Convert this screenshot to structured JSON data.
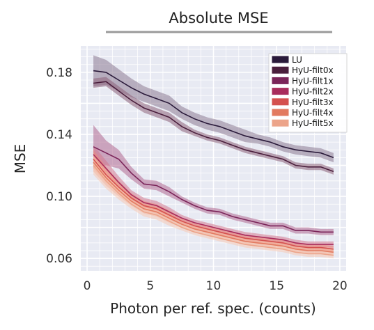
{
  "chart_data": {
    "type": "line",
    "title": "Absolute MSE",
    "xlabel": "Photon per ref. spec. (counts)",
    "ylabel": "MSE",
    "xlim": [
      -0.5,
      20.5
    ],
    "ylim": [
      0.052,
      0.197
    ],
    "xticks": [
      0,
      5,
      10,
      15,
      20
    ],
    "xtick_labels": [
      "0",
      "5",
      "10",
      "15",
      "20"
    ],
    "yticks": [
      0.06,
      0.1,
      0.14,
      0.18
    ],
    "ytick_labels": [
      "0.06",
      "0.10",
      "0.14",
      "0.18"
    ],
    "grid": true,
    "legend_position": "top-right",
    "x": [
      0.5,
      1.5,
      2.5,
      3.5,
      4.5,
      5.5,
      6.5,
      7.5,
      8.5,
      9.5,
      10.5,
      11.5,
      12.5,
      13.5,
      14.5,
      15.5,
      16.5,
      17.5,
      18.5,
      19.5
    ],
    "series": [
      {
        "name": "LU",
        "color": "#2a1a3a",
        "band_color": "#8c7a92",
        "values": [
          0.181,
          0.18,
          0.175,
          0.17,
          0.166,
          0.163,
          0.16,
          0.154,
          0.15,
          0.147,
          0.145,
          0.142,
          0.139,
          0.137,
          0.135,
          0.132,
          0.13,
          0.129,
          0.128,
          0.125
        ],
        "spread": [
          0.01,
          0.008,
          0.007,
          0.006,
          0.005,
          0.005,
          0.005,
          0.004,
          0.004,
          0.004,
          0.004,
          0.004,
          0.004,
          0.003,
          0.003,
          0.003,
          0.003,
          0.003,
          0.003,
          0.003
        ]
      },
      {
        "name": "HyU-filt0x",
        "color": "#4a1e3c",
        "band_color": "#8c6078",
        "values": [
          0.173,
          0.174,
          0.168,
          0.162,
          0.157,
          0.154,
          0.151,
          0.145,
          0.141,
          0.138,
          0.136,
          0.133,
          0.13,
          0.128,
          0.126,
          0.124,
          0.12,
          0.119,
          0.119,
          0.116
        ],
        "spread": [
          0.003,
          0.003,
          0.003,
          0.003,
          0.003,
          0.003,
          0.003,
          0.003,
          0.002,
          0.002,
          0.002,
          0.002,
          0.002,
          0.002,
          0.002,
          0.002,
          0.002,
          0.002,
          0.002,
          0.002
        ]
      },
      {
        "name": "HyU-filt1x",
        "color": "#7a2459",
        "band_color": "#b06890",
        "values": [
          0.132,
          0.128,
          0.124,
          0.115,
          0.108,
          0.107,
          0.103,
          0.098,
          0.094,
          0.091,
          0.09,
          0.087,
          0.085,
          0.083,
          0.081,
          0.081,
          0.078,
          0.078,
          0.077,
          0.077
        ],
        "spread": [
          0.014,
          0.008,
          0.006,
          0.004,
          0.003,
          0.003,
          0.003,
          0.002,
          0.002,
          0.002,
          0.002,
          0.002,
          0.002,
          0.002,
          0.002,
          0.002,
          0.002,
          0.002,
          0.002,
          0.002
        ]
      },
      {
        "name": "HyU-filt2x",
        "color": "#a82c5c",
        "band_color": "#d4788e",
        "values": [
          0.127,
          0.118,
          0.109,
          0.101,
          0.096,
          0.094,
          0.09,
          0.086,
          0.083,
          0.081,
          0.079,
          0.077,
          0.075,
          0.074,
          0.073,
          0.072,
          0.07,
          0.069,
          0.069,
          0.069
        ],
        "spread": [
          0.006,
          0.005,
          0.004,
          0.003,
          0.003,
          0.003,
          0.003,
          0.002,
          0.002,
          0.002,
          0.002,
          0.002,
          0.002,
          0.002,
          0.002,
          0.002,
          0.002,
          0.002,
          0.002,
          0.002
        ]
      },
      {
        "name": "HyU-filt3x",
        "color": "#d4504e",
        "band_color": "#ec8c7c",
        "values": [
          0.124,
          0.114,
          0.106,
          0.099,
          0.094,
          0.092,
          0.088,
          0.084,
          0.081,
          0.079,
          0.077,
          0.075,
          0.073,
          0.072,
          0.071,
          0.07,
          0.068,
          0.067,
          0.067,
          0.066
        ],
        "spread": [
          0.006,
          0.005,
          0.004,
          0.003,
          0.003,
          0.003,
          0.003,
          0.002,
          0.002,
          0.002,
          0.002,
          0.002,
          0.002,
          0.002,
          0.002,
          0.002,
          0.002,
          0.002,
          0.002,
          0.002
        ]
      },
      {
        "name": "HyU-filt4x",
        "color": "#e27a60",
        "band_color": "#f2a88e",
        "values": [
          0.122,
          0.112,
          0.104,
          0.097,
          0.092,
          0.09,
          0.086,
          0.082,
          0.079,
          0.077,
          0.075,
          0.073,
          0.071,
          0.07,
          0.069,
          0.068,
          0.066,
          0.065,
          0.065,
          0.064
        ],
        "spread": [
          0.006,
          0.005,
          0.004,
          0.003,
          0.003,
          0.003,
          0.003,
          0.002,
          0.002,
          0.002,
          0.002,
          0.002,
          0.002,
          0.002,
          0.002,
          0.002,
          0.002,
          0.002,
          0.002,
          0.002
        ]
      },
      {
        "name": "HyU-filt5x",
        "color": "#eca48a",
        "band_color": "#f6c8b4",
        "values": [
          0.12,
          0.11,
          0.102,
          0.095,
          0.09,
          0.088,
          0.084,
          0.08,
          0.077,
          0.075,
          0.073,
          0.071,
          0.069,
          0.068,
          0.067,
          0.066,
          0.064,
          0.063,
          0.063,
          0.062
        ],
        "spread": [
          0.006,
          0.005,
          0.004,
          0.003,
          0.003,
          0.003,
          0.003,
          0.002,
          0.002,
          0.002,
          0.002,
          0.002,
          0.002,
          0.002,
          0.002,
          0.002,
          0.002,
          0.002,
          0.002,
          0.002
        ]
      }
    ]
  }
}
